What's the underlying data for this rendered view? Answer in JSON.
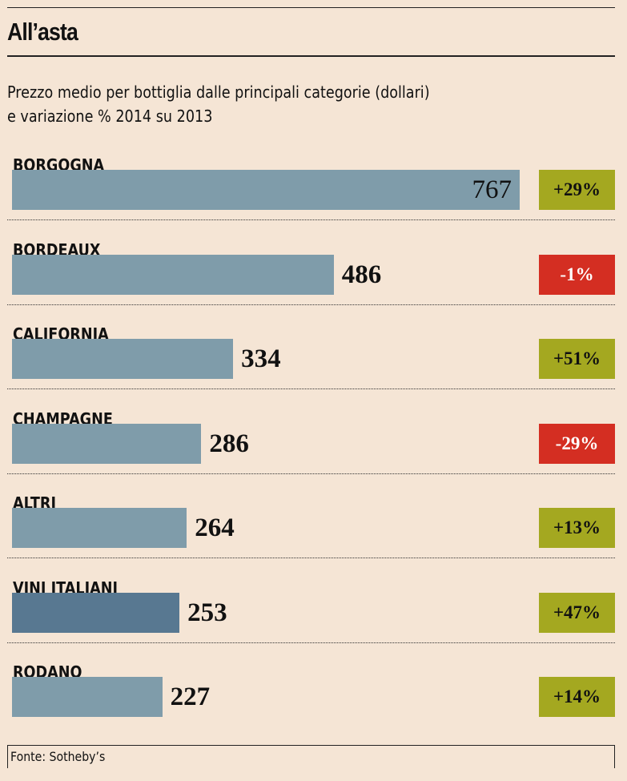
{
  "chart_data": {
    "type": "bar",
    "orientation": "horizontal",
    "title": "All’asta",
    "subtitle_line1": "Prezzo medio per bottiglia dalle principali categorie (dollari)",
    "subtitle_line2": "e variazione % 2014 su 2013",
    "categories": [
      "BORGOGNA",
      "BORDEAUX",
      "CALIFORNIA",
      "CHAMPAGNE",
      "ALTRI",
      "VINI ITALIANI",
      "RODANO"
    ],
    "values": [
      767,
      486,
      334,
      286,
      264,
      253,
      227
    ],
    "changes": [
      "+29%",
      "-1%",
      "+51%",
      "-29%",
      "+13%",
      "+47%",
      "+14%"
    ],
    "highlight": "VINI ITALIANI",
    "xlim": [
      0,
      767
    ],
    "source": "Fonte: Sotheby’s"
  },
  "colors": {
    "bar": "#7f9caa",
    "highlight_bar": "#587891",
    "positive": "#a4a820",
    "negative": "#d42e22",
    "background": "#f5e5d5"
  }
}
